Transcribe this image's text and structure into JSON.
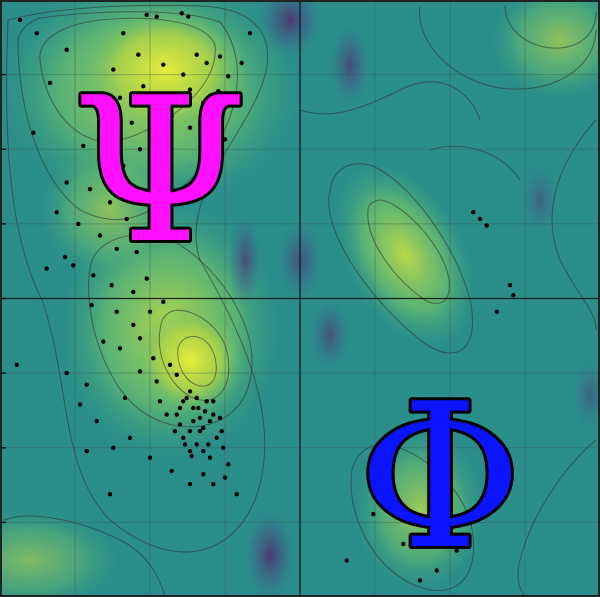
{
  "labels": {
    "psi": "Ψ",
    "phi": "Φ"
  },
  "colors": {
    "psi": "#ff10ff",
    "phi": "#0a14ff",
    "bg": "#2a8f8a",
    "ridge": "#5a2a8a",
    "high": "#d6e642"
  },
  "chart_data": {
    "type": "scatter",
    "title": "",
    "xlabel": "",
    "ylabel": "",
    "xlim": [
      -180,
      180
    ],
    "ylim": [
      -180,
      180
    ],
    "grid": true,
    "series": [
      {
        "points": [
          [
            -168,
            168
          ],
          [
            -92,
            171
          ],
          [
            -86,
            170
          ],
          [
            -106,
            160
          ],
          [
            -71,
            172
          ],
          [
            -67,
            170
          ],
          [
            -140,
            150
          ],
          [
            -158,
            160
          ],
          [
            -112,
            138
          ],
          [
            -97,
            147
          ],
          [
            -82,
            141
          ],
          [
            -70,
            135
          ],
          [
            -62,
            147
          ],
          [
            -56,
            142
          ],
          [
            -48,
            146
          ],
          [
            -43,
            134
          ],
          [
            -35,
            142
          ],
          [
            -108,
            121
          ],
          [
            -94,
            128
          ],
          [
            -84,
            122
          ],
          [
            -73,
            118
          ],
          [
            -66,
            126
          ],
          [
            -58,
            118
          ],
          [
            -49,
            125
          ],
          [
            -101,
            106
          ],
          [
            -87,
            98
          ],
          [
            -77,
            110
          ],
          [
            -66,
            103
          ],
          [
            -55,
            109
          ],
          [
            -45,
            96
          ],
          [
            -130,
            92
          ],
          [
            -119,
            85
          ],
          [
            -106,
            80
          ],
          [
            -96,
            90
          ],
          [
            -140,
            70
          ],
          [
            -126,
            66
          ],
          [
            -114,
            58
          ],
          [
            -104,
            48
          ],
          [
            -146,
            52
          ],
          [
            -133,
            45
          ],
          [
            -120,
            38
          ],
          [
            -110,
            30
          ],
          [
            -98,
            28
          ],
          [
            -136,
            20
          ],
          [
            -124,
            14
          ],
          [
            -113,
            8
          ],
          [
            -100,
            4
          ],
          [
            -92,
            12
          ],
          [
            -141,
            25
          ],
          [
            -152,
            18
          ],
          [
            -125,
            -4
          ],
          [
            -110,
            -8
          ],
          [
            -100,
            -16
          ],
          [
            -90,
            -8
          ],
          [
            -82,
            -2
          ],
          [
            -118,
            -26
          ],
          [
            -108,
            -30
          ],
          [
            -96,
            -24
          ],
          [
            -88,
            -36
          ],
          [
            -78,
            -40
          ],
          [
            -105,
            -60
          ],
          [
            -128,
            -52
          ],
          [
            -140,
            -45
          ],
          [
            -84,
            -62
          ],
          [
            -70,
            -62
          ],
          [
            -66,
            -56
          ],
          [
            -64,
            -66
          ],
          [
            -60,
            -72
          ],
          [
            -56,
            -62
          ],
          [
            -72,
            -76
          ],
          [
            -58,
            -78
          ],
          [
            -52,
            -70
          ],
          [
            -50,
            -84
          ],
          [
            -62,
            -88
          ],
          [
            -66,
            -92
          ],
          [
            -74,
            -70
          ],
          [
            -61,
            -66
          ],
          [
            -68,
            -60
          ],
          [
            -54,
            -74
          ],
          [
            -70,
            -84
          ],
          [
            -60,
            -80
          ],
          [
            -55,
            -88
          ],
          [
            -47,
            -80
          ],
          [
            -64,
            -74
          ],
          [
            -57,
            -68
          ],
          [
            -66,
            -80
          ],
          [
            -62,
            -60
          ],
          [
            -52,
            -62
          ],
          [
            -48,
            -72
          ],
          [
            -72,
            -66
          ],
          [
            -69,
            -88
          ],
          [
            -58,
            -92
          ],
          [
            -46,
            -90
          ],
          [
            -75,
            -80
          ],
          [
            -80,
            -70
          ],
          [
            -65,
            -95
          ],
          [
            -54,
            -96
          ],
          [
            -43,
            -100
          ],
          [
            -90,
            -96
          ],
          [
            -102,
            -84
          ],
          [
            -112,
            -90
          ],
          [
            -128,
            -92
          ],
          [
            -114,
            -118
          ],
          [
            -77,
            -104
          ],
          [
            -66,
            -112
          ],
          [
            -58,
            -106
          ],
          [
            -52,
            -112
          ],
          [
            -45,
            -108
          ],
          [
            -38,
            -118
          ],
          [
            -122,
            -74
          ],
          [
            -132,
            -64
          ],
          [
            -96,
            -44
          ],
          [
            -86,
            -50
          ],
          [
            -74,
            -46
          ],
          [
            108,
            48
          ],
          [
            104,
            52
          ],
          [
            112,
            44
          ],
          [
            126,
            8
          ],
          [
            128,
            2
          ],
          [
            118,
            -8
          ],
          [
            94,
            -152
          ],
          [
            44,
            -130
          ],
          [
            28,
            -158
          ],
          [
            82,
            -164
          ],
          [
            62,
            -148
          ],
          [
            72,
            -170
          ],
          [
            -170,
            -40
          ],
          [
            -160,
            100
          ],
          [
            -150,
            130
          ],
          [
            -30,
            160
          ]
        ]
      }
    ]
  }
}
